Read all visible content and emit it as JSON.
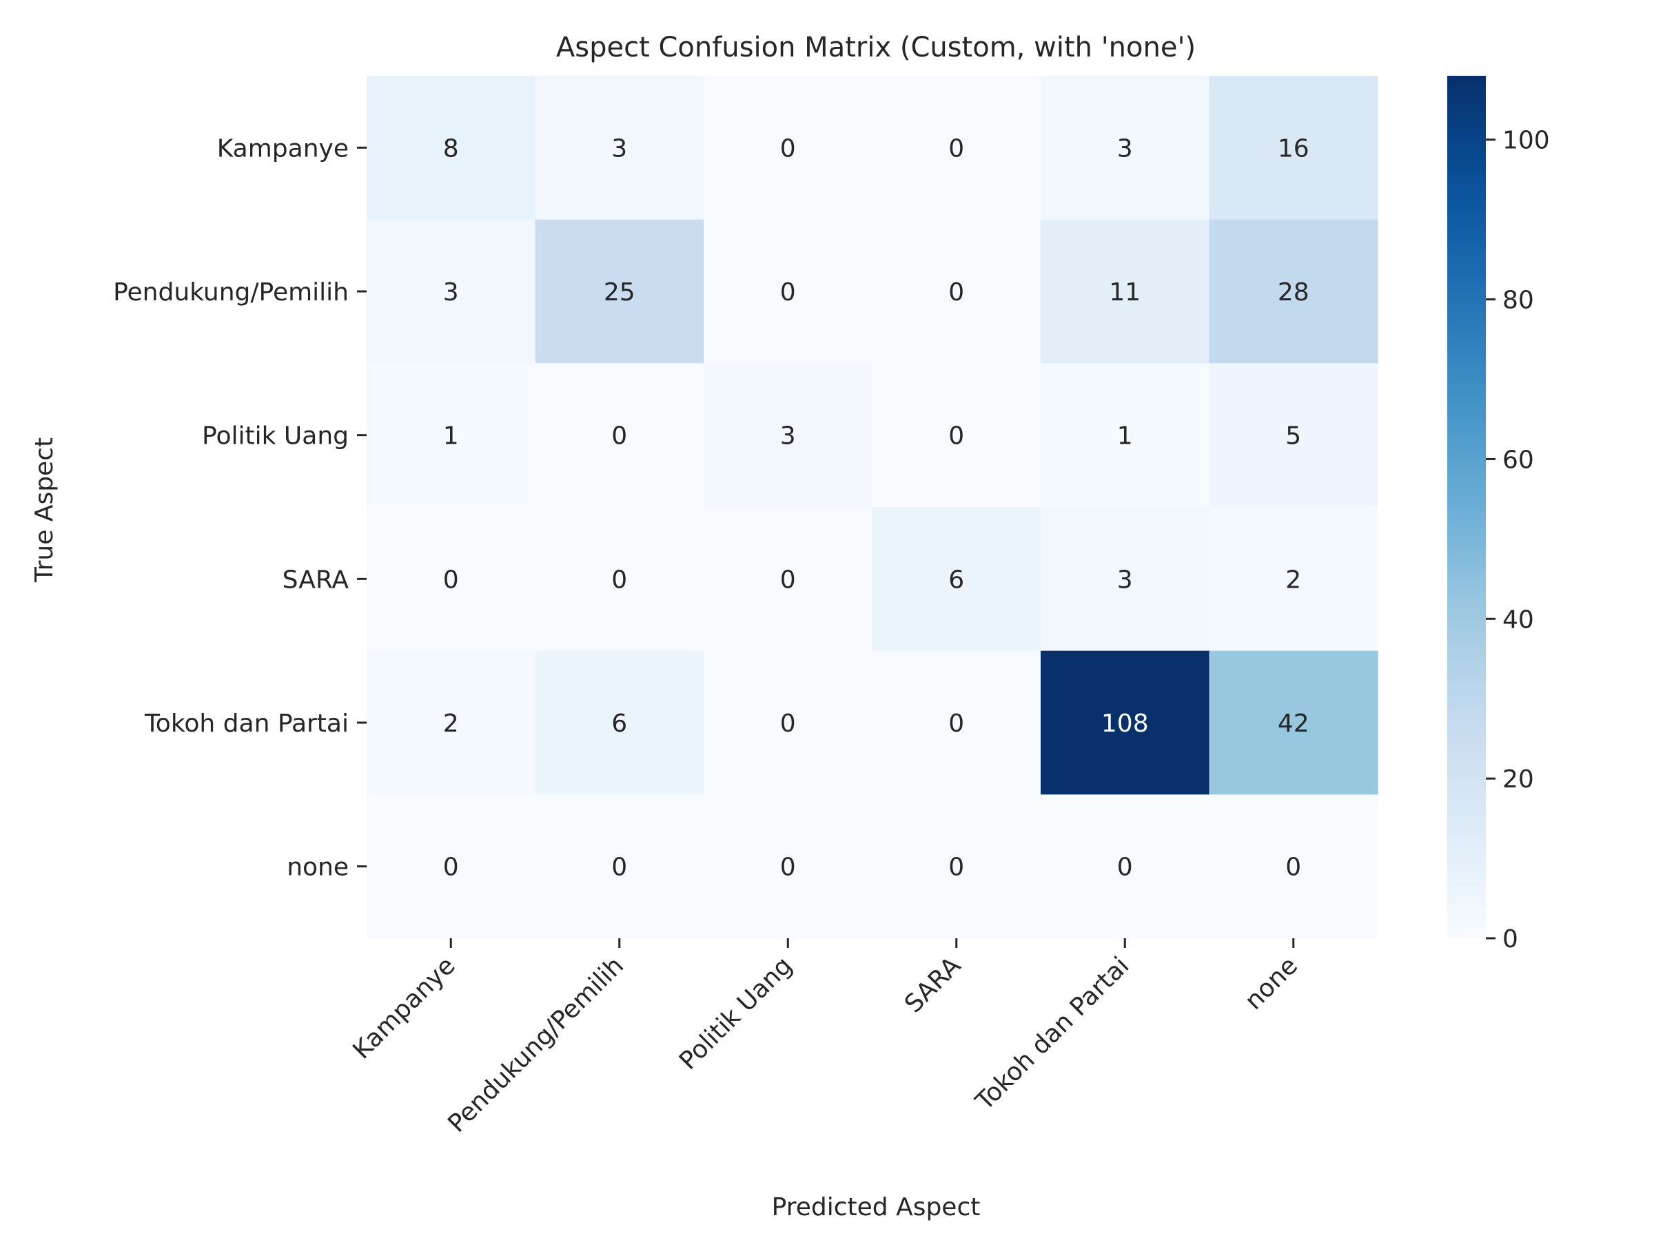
{
  "chart_data": {
    "type": "heatmap",
    "title": "Aspect Confusion Matrix (Custom, with 'none')",
    "xlabel": "Predicted Aspect",
    "ylabel": "True Aspect",
    "x_categories": [
      "Kampanye",
      "Pendukung/Pemilih",
      "Politik Uang",
      "SARA",
      "Tokoh dan Partai",
      "none"
    ],
    "y_categories": [
      "Kampanye",
      "Pendukung/Pemilih",
      "Politik Uang",
      "SARA",
      "Tokoh dan Partai",
      "none"
    ],
    "values": [
      [
        8,
        3,
        0,
        0,
        3,
        16
      ],
      [
        3,
        25,
        0,
        0,
        11,
        28
      ],
      [
        1,
        0,
        3,
        0,
        1,
        5
      ],
      [
        0,
        0,
        0,
        6,
        3,
        2
      ],
      [
        2,
        6,
        0,
        0,
        108,
        42
      ],
      [
        0,
        0,
        0,
        0,
        0,
        0
      ]
    ],
    "colormap": "Blues",
    "colorbar": {
      "range": [
        0,
        108
      ],
      "ticks": [
        0,
        20,
        40,
        60,
        80,
        100
      ]
    }
  }
}
